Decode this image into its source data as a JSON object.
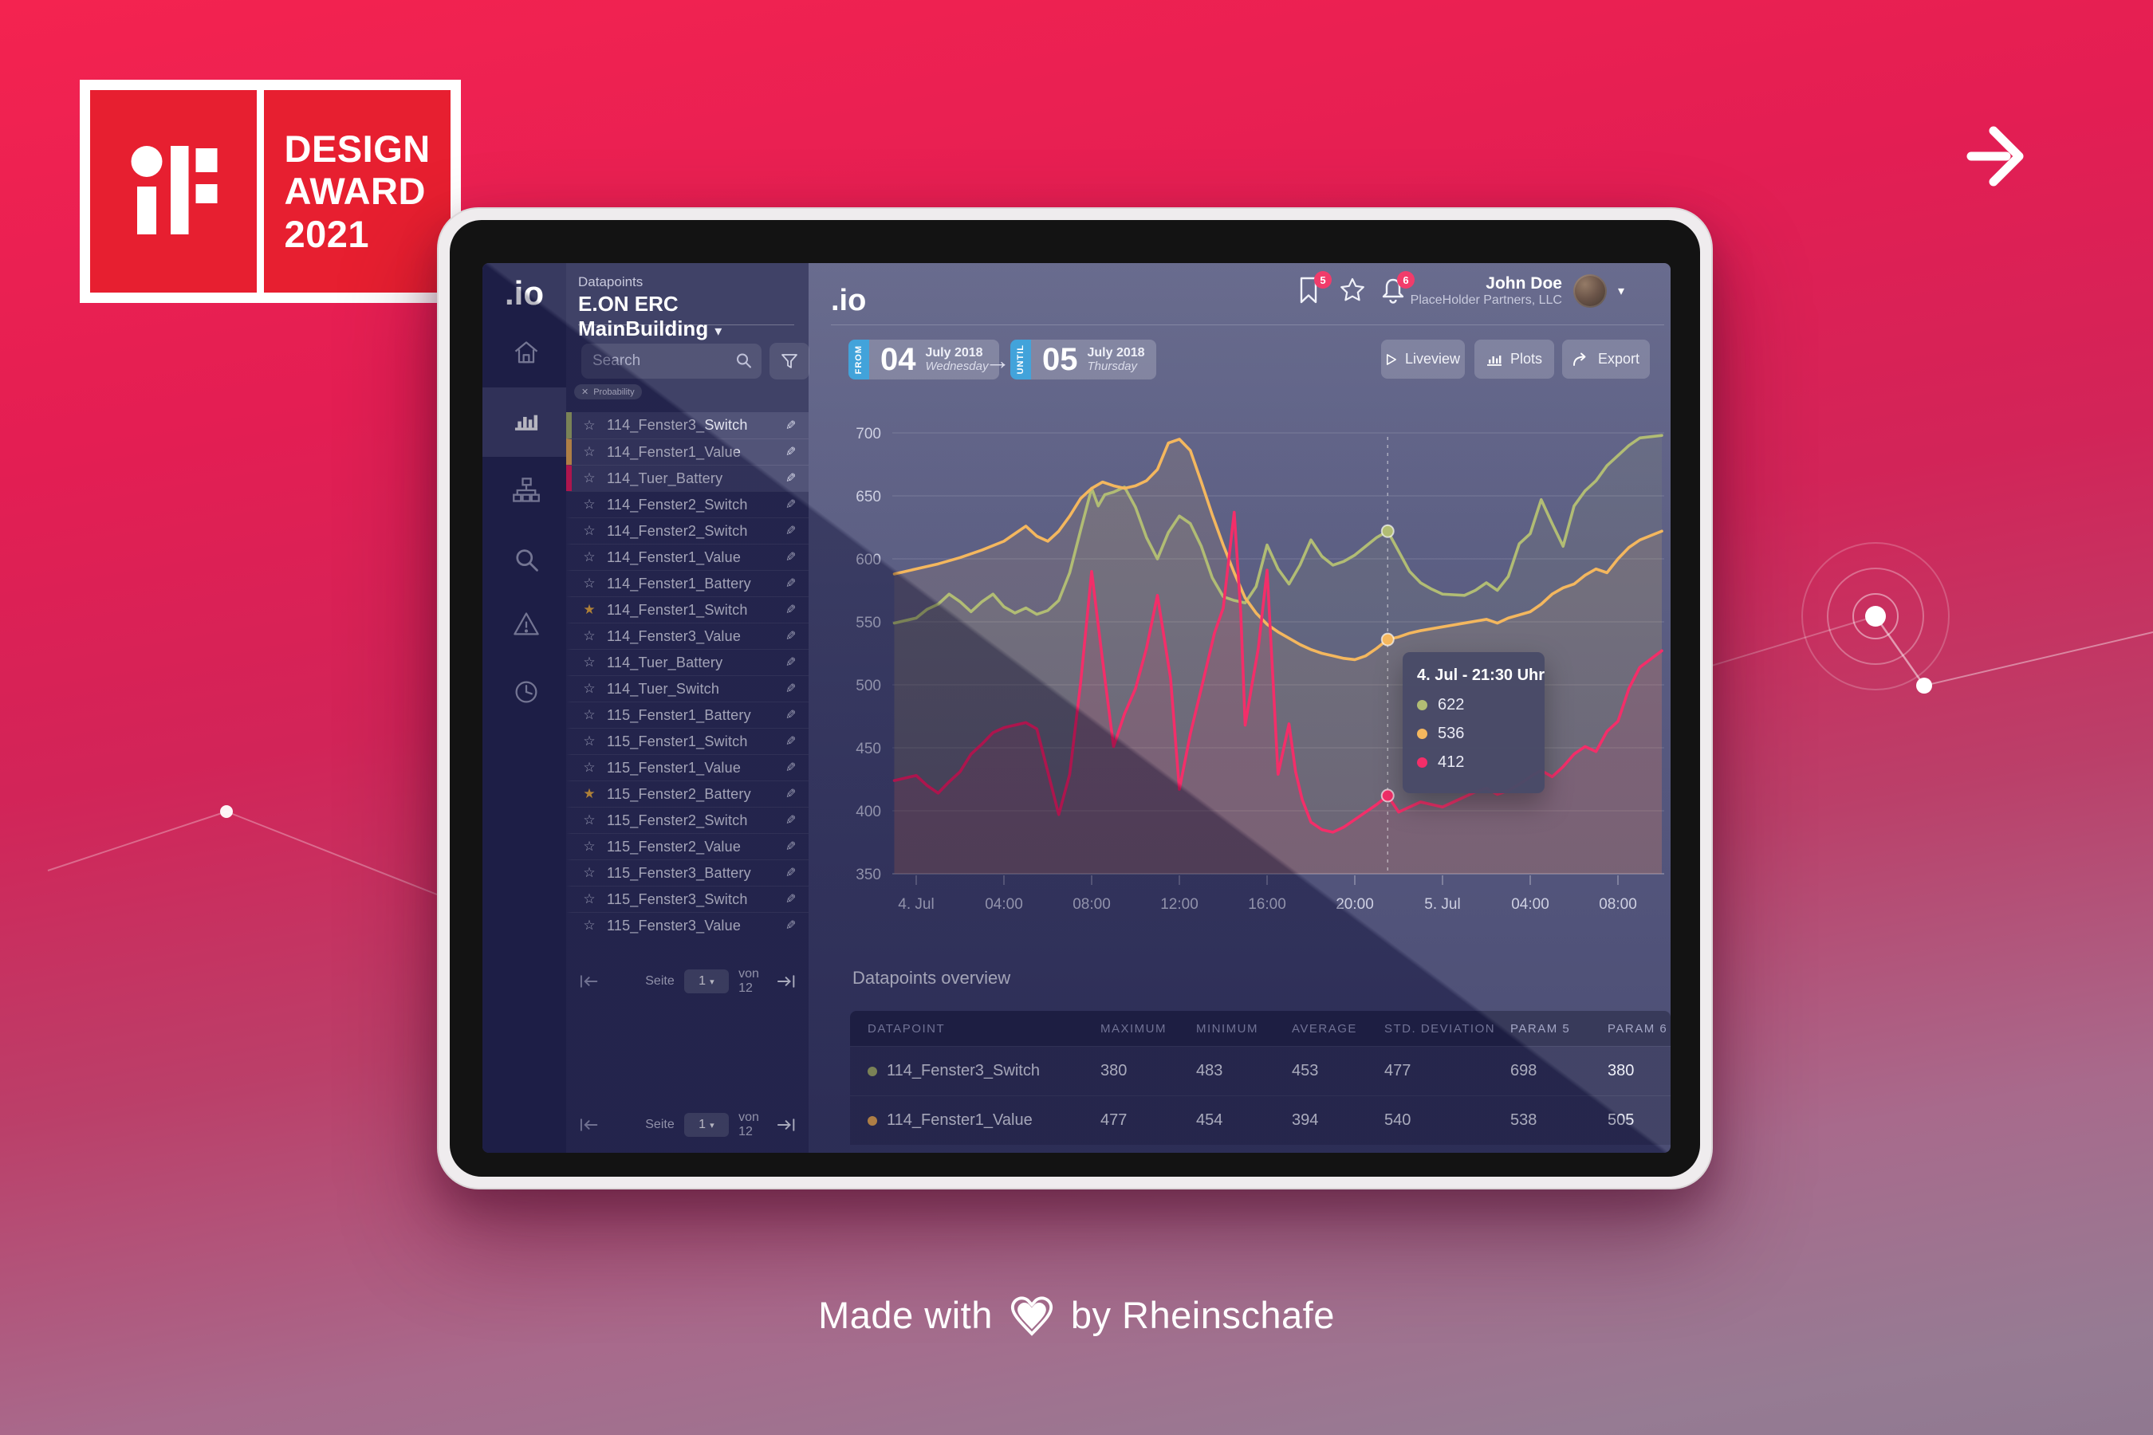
{
  "badge": {
    "logo": "iF",
    "line1": "DESIGN",
    "line2": "AWARD",
    "line3": "2021"
  },
  "footer": {
    "text_before": "Made with",
    "text_after": "by Rheinschafe"
  },
  "colors": {
    "background_top": "#f42350",
    "background_bottom": "#8f7890",
    "badge_red": "#e71f30",
    "accent_blue": "#2f9ad7",
    "badge_pink": "#f0295c",
    "series_green": "#a9b566",
    "series_yellow": "#f3b04e",
    "series_red": "#f2195a",
    "screen_dark": "#3a3c66",
    "rail": "#242650",
    "sidebar": "#2d2f58"
  },
  "app": {
    "nav_rail": {
      "logo": ".io",
      "items": [
        {
          "icon": "home-icon",
          "active": false
        },
        {
          "icon": "bar-chart-icon",
          "active": true
        },
        {
          "icon": "sitemap-icon",
          "active": false
        },
        {
          "icon": "search-icon",
          "active": false
        },
        {
          "icon": "warning-icon",
          "active": false
        },
        {
          "icon": "history-icon",
          "active": false
        }
      ]
    },
    "sidebar": {
      "section_label": "Datapoints",
      "building": "E.ON ERC MainBuilding",
      "search_placeholder": "Search",
      "filter_chip": "Probability",
      "datapoints": [
        {
          "name": "114_Fenster3_Switch",
          "selected": true,
          "series_color": "#a9b566",
          "favorite": false
        },
        {
          "name": "114_Fenster1_Value",
          "selected": true,
          "series_color": "#f3b04e",
          "favorite": false
        },
        {
          "name": "114_Tuer_Battery",
          "selected": true,
          "series_color": "#f2195a",
          "favorite": false
        },
        {
          "name": "114_Fenster2_Switch",
          "selected": false,
          "favorite": false
        },
        {
          "name": "114_Fenster2_Switch",
          "selected": false,
          "favorite": false
        },
        {
          "name": "114_Fenster1_Value",
          "selected": false,
          "favorite": false
        },
        {
          "name": "114_Fenster1_Battery",
          "selected": false,
          "favorite": false
        },
        {
          "name": "114_Fenster1_Switch",
          "selected": false,
          "favorite": true
        },
        {
          "name": "114_Fenster3_Value",
          "selected": false,
          "favorite": false
        },
        {
          "name": "114_Tuer_Battery",
          "selected": false,
          "favorite": false
        },
        {
          "name": "114_Tuer_Switch",
          "selected": false,
          "favorite": false
        },
        {
          "name": "115_Fenster1_Battery",
          "selected": false,
          "favorite": false
        },
        {
          "name": "115_Fenster1_Switch",
          "selected": false,
          "favorite": false
        },
        {
          "name": "115_Fenster1_Value",
          "selected": false,
          "favorite": false
        },
        {
          "name": "115_Fenster2_Battery",
          "selected": false,
          "favorite": true
        },
        {
          "name": "115_Fenster2_Switch",
          "selected": false,
          "favorite": false
        },
        {
          "name": "115_Fenster2_Value",
          "selected": false,
          "favorite": false
        },
        {
          "name": "115_Fenster3_Battery",
          "selected": false,
          "favorite": false
        },
        {
          "name": "115_Fenster3_Switch",
          "selected": false,
          "favorite": false
        },
        {
          "name": "115_Fenster3_Value",
          "selected": false,
          "favorite": false
        }
      ],
      "pagination": {
        "label": "Seite",
        "page": "1",
        "of_label": "von 12"
      }
    },
    "topbar": {
      "logo": ".io",
      "bookmark_badge": "5",
      "notifications_badge": "6",
      "user": {
        "name": "John Doe",
        "org": "PlaceHolder Partners, LLC"
      }
    },
    "controls": {
      "from": {
        "tag": "FROM",
        "day": "04",
        "month": "July 2018",
        "weekday": "Wednesday"
      },
      "until": {
        "tag": "UNTIL",
        "day": "05",
        "month": "July 2018",
        "weekday": "Thursday"
      },
      "buttons": [
        {
          "label": "Liveview",
          "icon": "play-icon"
        },
        {
          "label": "Plots",
          "icon": "bar-chart-icon"
        },
        {
          "label": "Export",
          "icon": "export-icon"
        }
      ]
    },
    "overview": {
      "title": "Datapoints overview",
      "columns": [
        "DATAPOINT",
        "MAXIMUM",
        "MINIMUM",
        "AVERAGE",
        "STD. DEVIATION",
        "PARAM 5",
        "PARAM 6"
      ],
      "rows": [
        {
          "name": "114_Fenster3_Switch",
          "dot_color": "#a9b566",
          "values": [
            "380",
            "483",
            "453",
            "477",
            "698",
            "380"
          ]
        },
        {
          "name": "114_Fenster1_Value",
          "dot_color": "#f3b04e",
          "values": [
            "477",
            "454",
            "394",
            "540",
            "538",
            "505"
          ]
        }
      ]
    }
  },
  "chart_data": {
    "type": "line",
    "title": "",
    "xlabel": "",
    "ylabel": "",
    "ylim": [
      350,
      700
    ],
    "y_step": 50,
    "grid": true,
    "x_unit_hours_from": "4 Jul 2018 00:00",
    "x_ticks": [
      {
        "t": 0,
        "label": "4. Jul"
      },
      {
        "t": 4,
        "label": "04:00"
      },
      {
        "t": 8,
        "label": "08:00"
      },
      {
        "t": 12,
        "label": "12:00"
      },
      {
        "t": 16,
        "label": "16:00"
      },
      {
        "t": 20,
        "label": "20:00"
      },
      {
        "t": 24,
        "label": "5. Jul"
      },
      {
        "t": 28,
        "label": "04:00"
      },
      {
        "t": 32,
        "label": "08:00"
      }
    ],
    "hover": {
      "t": 21.5,
      "label": "4. Jul - 21:30 Uhr",
      "points": [
        {
          "series": "114_Fenster3_Switch",
          "color": "#a9b566",
          "value": 622
        },
        {
          "series": "114_Fenster1_Value",
          "color": "#f3b04e",
          "value": 536
        },
        {
          "series": "114_Tuer_Battery",
          "color": "#f2195a",
          "value": 412
        }
      ]
    },
    "series": [
      {
        "name": "114_Fenster3_Switch",
        "color": "#a9b566",
        "points": [
          [
            -1,
            549
          ],
          [
            0,
            553
          ],
          [
            0.5,
            560
          ],
          [
            1,
            564
          ],
          [
            1.5,
            572
          ],
          [
            2,
            566
          ],
          [
            2.5,
            558
          ],
          [
            3,
            566
          ],
          [
            3.5,
            572
          ],
          [
            4,
            562
          ],
          [
            4.5,
            557
          ],
          [
            5,
            561
          ],
          [
            5.5,
            556
          ],
          [
            6,
            559
          ],
          [
            6.5,
            567
          ],
          [
            7,
            589
          ],
          [
            7.5,
            623
          ],
          [
            8,
            656
          ],
          [
            8.3,
            642
          ],
          [
            8.6,
            651
          ],
          [
            9,
            653
          ],
          [
            9.5,
            657
          ],
          [
            10,
            641
          ],
          [
            10.5,
            617
          ],
          [
            11,
            600
          ],
          [
            11.5,
            621
          ],
          [
            12,
            634
          ],
          [
            12.5,
            628
          ],
          [
            13,
            610
          ],
          [
            13.5,
            585
          ],
          [
            14,
            570
          ],
          [
            14.5,
            567
          ],
          [
            15,
            565
          ],
          [
            15.5,
            578
          ],
          [
            16,
            611
          ],
          [
            16.5,
            592
          ],
          [
            17,
            580
          ],
          [
            17.5,
            595
          ],
          [
            18,
            615
          ],
          [
            18.5,
            602
          ],
          [
            19,
            595
          ],
          [
            19.5,
            598
          ],
          [
            20,
            603
          ],
          [
            20.5,
            610
          ],
          [
            21,
            617
          ],
          [
            21.5,
            622
          ],
          [
            22,
            606
          ],
          [
            22.5,
            590
          ],
          [
            23,
            581
          ],
          [
            23.5,
            576
          ],
          [
            24,
            572
          ],
          [
            25,
            571
          ],
          [
            25.5,
            575
          ],
          [
            26,
            581
          ],
          [
            26.5,
            575
          ],
          [
            27,
            586
          ],
          [
            27.5,
            612
          ],
          [
            28,
            620
          ],
          [
            28.5,
            647
          ],
          [
            29,
            628
          ],
          [
            29.5,
            610
          ],
          [
            30,
            642
          ],
          [
            30.5,
            654
          ],
          [
            31,
            662
          ],
          [
            31.5,
            674
          ],
          [
            32,
            682
          ],
          [
            32.5,
            690
          ],
          [
            33,
            696
          ],
          [
            34,
            698
          ]
        ]
      },
      {
        "name": "114_Fenster1_Value",
        "color": "#f3b04e",
        "points": [
          [
            -1,
            588
          ],
          [
            0,
            592
          ],
          [
            1,
            596
          ],
          [
            2,
            601
          ],
          [
            3,
            607
          ],
          [
            4,
            614
          ],
          [
            4.5,
            620
          ],
          [
            5,
            626
          ],
          [
            5.5,
            618
          ],
          [
            6,
            614
          ],
          [
            6.5,
            622
          ],
          [
            7,
            634
          ],
          [
            7.5,
            648
          ],
          [
            8,
            656
          ],
          [
            8.5,
            661
          ],
          [
            9,
            658
          ],
          [
            9.5,
            656
          ],
          [
            10,
            658
          ],
          [
            10.5,
            662
          ],
          [
            11,
            671
          ],
          [
            11.5,
            692
          ],
          [
            12,
            695
          ],
          [
            12.5,
            686
          ],
          [
            13,
            661
          ],
          [
            13.5,
            635
          ],
          [
            14,
            611
          ],
          [
            14.5,
            589
          ],
          [
            15,
            569
          ],
          [
            15.5,
            557
          ],
          [
            16,
            548
          ],
          [
            16.5,
            542
          ],
          [
            17,
            537
          ],
          [
            17.5,
            532
          ],
          [
            18,
            528
          ],
          [
            18.5,
            525
          ],
          [
            19,
            523
          ],
          [
            19.5,
            521
          ],
          [
            20,
            520
          ],
          [
            20.5,
            523
          ],
          [
            21,
            529
          ],
          [
            21.5,
            536
          ],
          [
            22,
            538
          ],
          [
            22.5,
            541
          ],
          [
            23,
            543
          ],
          [
            24,
            546
          ],
          [
            25,
            549
          ],
          [
            26,
            552
          ],
          [
            26.5,
            549
          ],
          [
            27,
            553
          ],
          [
            28,
            558
          ],
          [
            28.5,
            564
          ],
          [
            29,
            572
          ],
          [
            29.5,
            577
          ],
          [
            30,
            580
          ],
          [
            30.5,
            587
          ],
          [
            31,
            592
          ],
          [
            31.5,
            589
          ],
          [
            32,
            600
          ],
          [
            32.5,
            609
          ],
          [
            33,
            615
          ],
          [
            34,
            622
          ]
        ]
      },
      {
        "name": "114_Tuer_Battery",
        "color": "#f2195a",
        "points": [
          [
            -1,
            424
          ],
          [
            0,
            428
          ],
          [
            0.5,
            420
          ],
          [
            1,
            414
          ],
          [
            1.5,
            423
          ],
          [
            2,
            431
          ],
          [
            2.5,
            445
          ],
          [
            3,
            453
          ],
          [
            3.5,
            462
          ],
          [
            4,
            466
          ],
          [
            4.5,
            468
          ],
          [
            5,
            470
          ],
          [
            5.5,
            465
          ],
          [
            6,
            431
          ],
          [
            6.5,
            397
          ],
          [
            7,
            429
          ],
          [
            7.5,
            502
          ],
          [
            8,
            590
          ],
          [
            8.5,
            519
          ],
          [
            9,
            451
          ],
          [
            9.5,
            477
          ],
          [
            10,
            497
          ],
          [
            10.5,
            529
          ],
          [
            11,
            571
          ],
          [
            11.3,
            538
          ],
          [
            11.6,
            505
          ],
          [
            12,
            417
          ],
          [
            12.5,
            461
          ],
          [
            13,
            497
          ],
          [
            13.3,
            519
          ],
          [
            13.6,
            541
          ],
          [
            14,
            561
          ],
          [
            14.5,
            637
          ],
          [
            14.8,
            557
          ],
          [
            15,
            468
          ],
          [
            15.3,
            499
          ],
          [
            15.6,
            529
          ],
          [
            16,
            591
          ],
          [
            16.5,
            429
          ],
          [
            17,
            469
          ],
          [
            17.3,
            431
          ],
          [
            17.6,
            409
          ],
          [
            18,
            391
          ],
          [
            18.5,
            385
          ],
          [
            19,
            383
          ],
          [
            19.5,
            387
          ],
          [
            20,
            393
          ],
          [
            20.5,
            399
          ],
          [
            21,
            405
          ],
          [
            21.5,
            412
          ],
          [
            22,
            399
          ],
          [
            22.5,
            403
          ],
          [
            23,
            407
          ],
          [
            23.5,
            405
          ],
          [
            24,
            403
          ],
          [
            24.5,
            407
          ],
          [
            25,
            411
          ],
          [
            25.5,
            415
          ],
          [
            26,
            418
          ],
          [
            26.5,
            413
          ],
          [
            27,
            416
          ],
          [
            27.5,
            421
          ],
          [
            28,
            427
          ],
          [
            28.5,
            432
          ],
          [
            29,
            427
          ],
          [
            29.5,
            435
          ],
          [
            30,
            445
          ],
          [
            30.5,
            451
          ],
          [
            31,
            447
          ],
          [
            31.5,
            463
          ],
          [
            32,
            471
          ],
          [
            32.5,
            497
          ],
          [
            33,
            514
          ],
          [
            34,
            527
          ]
        ]
      }
    ]
  }
}
